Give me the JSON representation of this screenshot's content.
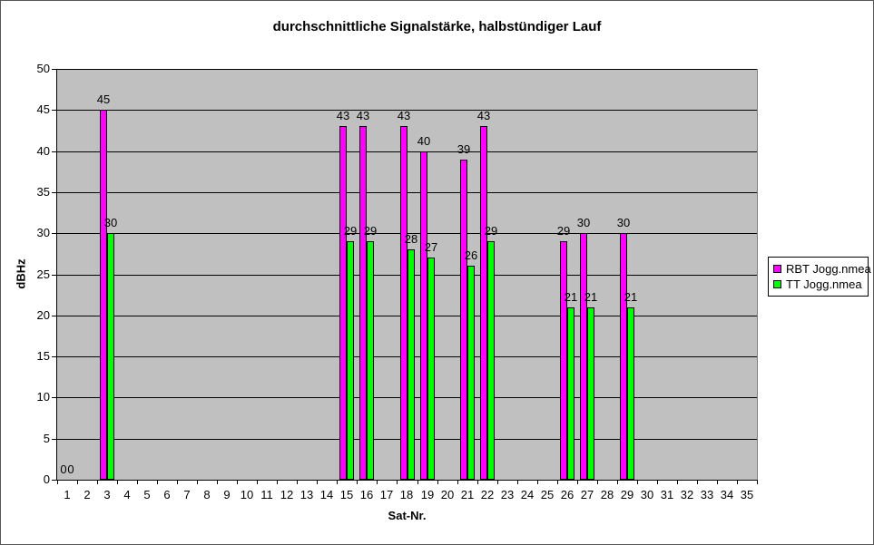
{
  "chart_data": {
    "type": "bar",
    "title": "durchschnittliche Signalstärke, halbstündiger Lauf",
    "xlabel": "Sat-Nr.",
    "ylabel": "dBHz",
    "ylim": [
      0,
      50
    ],
    "ytick_step": 5,
    "grid": true,
    "data_labels": true,
    "plot_bg": "#c0c0c0",
    "legend_position": "right",
    "categories": [
      1,
      2,
      3,
      4,
      5,
      6,
      7,
      8,
      9,
      10,
      11,
      12,
      13,
      14,
      15,
      16,
      17,
      18,
      19,
      20,
      21,
      22,
      23,
      24,
      25,
      26,
      27,
      28,
      29,
      30,
      31,
      32,
      33,
      34,
      35
    ],
    "series": [
      {
        "name": "RBT Jogg.nmea",
        "color": "#ff00ff",
        "values": [
          0,
          null,
          45,
          null,
          null,
          null,
          null,
          null,
          null,
          null,
          null,
          null,
          null,
          null,
          43,
          43,
          null,
          43,
          40,
          null,
          39,
          43,
          null,
          null,
          null,
          29,
          30,
          null,
          30,
          null,
          null,
          null,
          null,
          null,
          null
        ]
      },
      {
        "name": "TT Jogg.nmea",
        "color": "#00ff00",
        "values": [
          0,
          null,
          30,
          null,
          null,
          null,
          null,
          null,
          null,
          null,
          null,
          null,
          null,
          null,
          29,
          29,
          null,
          28,
          27,
          null,
          26,
          29,
          null,
          null,
          null,
          21,
          21,
          null,
          21,
          null,
          null,
          null,
          null,
          null,
          null
        ]
      }
    ]
  },
  "legend": {
    "items": [
      {
        "label": "RBT Jogg.nmea",
        "color": "#ff00ff"
      },
      {
        "label": "TT Jogg.nmea",
        "color": "#00ff00"
      }
    ]
  }
}
